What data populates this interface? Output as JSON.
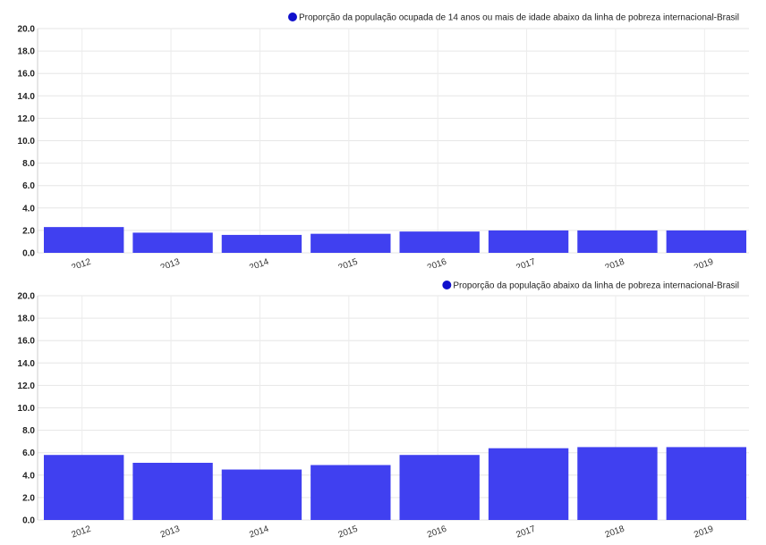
{
  "chart_data": [
    {
      "type": "bar",
      "categories": [
        "2012",
        "2013",
        "2014",
        "2015",
        "2016",
        "2017",
        "2018",
        "2019"
      ],
      "series": [
        {
          "name": "Proporção da população ocupada de 14 anos ou mais de idade abaixo da linha de pobreza internacional-Brasil",
          "values": [
            2.3,
            1.8,
            1.6,
            1.7,
            1.9,
            2.0,
            2.0,
            2.0
          ]
        }
      ],
      "ylim": [
        0,
        20
      ],
      "yticks": [
        "0.0",
        "2.0",
        "4.0",
        "6.0",
        "8.0",
        "10.0",
        "12.0",
        "14.0",
        "16.0",
        "18.0",
        "20.0"
      ],
      "grid": true,
      "legend": "top-right",
      "bar_color": "#4040f0",
      "legend_marker_color": "#1010cc"
    },
    {
      "type": "bar",
      "categories": [
        "2012",
        "2013",
        "2014",
        "2015",
        "2016",
        "2017",
        "2018",
        "2019"
      ],
      "series": [
        {
          "name": "Proporção da população abaixo da linha de pobreza internacional-Brasil",
          "values": [
            5.8,
            5.1,
            4.5,
            4.9,
            5.8,
            6.4,
            6.5,
            6.5
          ]
        }
      ],
      "ylim": [
        0,
        20
      ],
      "yticks": [
        "0.0",
        "2.0",
        "4.0",
        "6.0",
        "8.0",
        "10.0",
        "12.0",
        "14.0",
        "16.0",
        "18.0",
        "20.0"
      ],
      "grid": true,
      "legend": "top-right",
      "bar_color": "#4040f0",
      "legend_marker_color": "#1010cc"
    }
  ]
}
